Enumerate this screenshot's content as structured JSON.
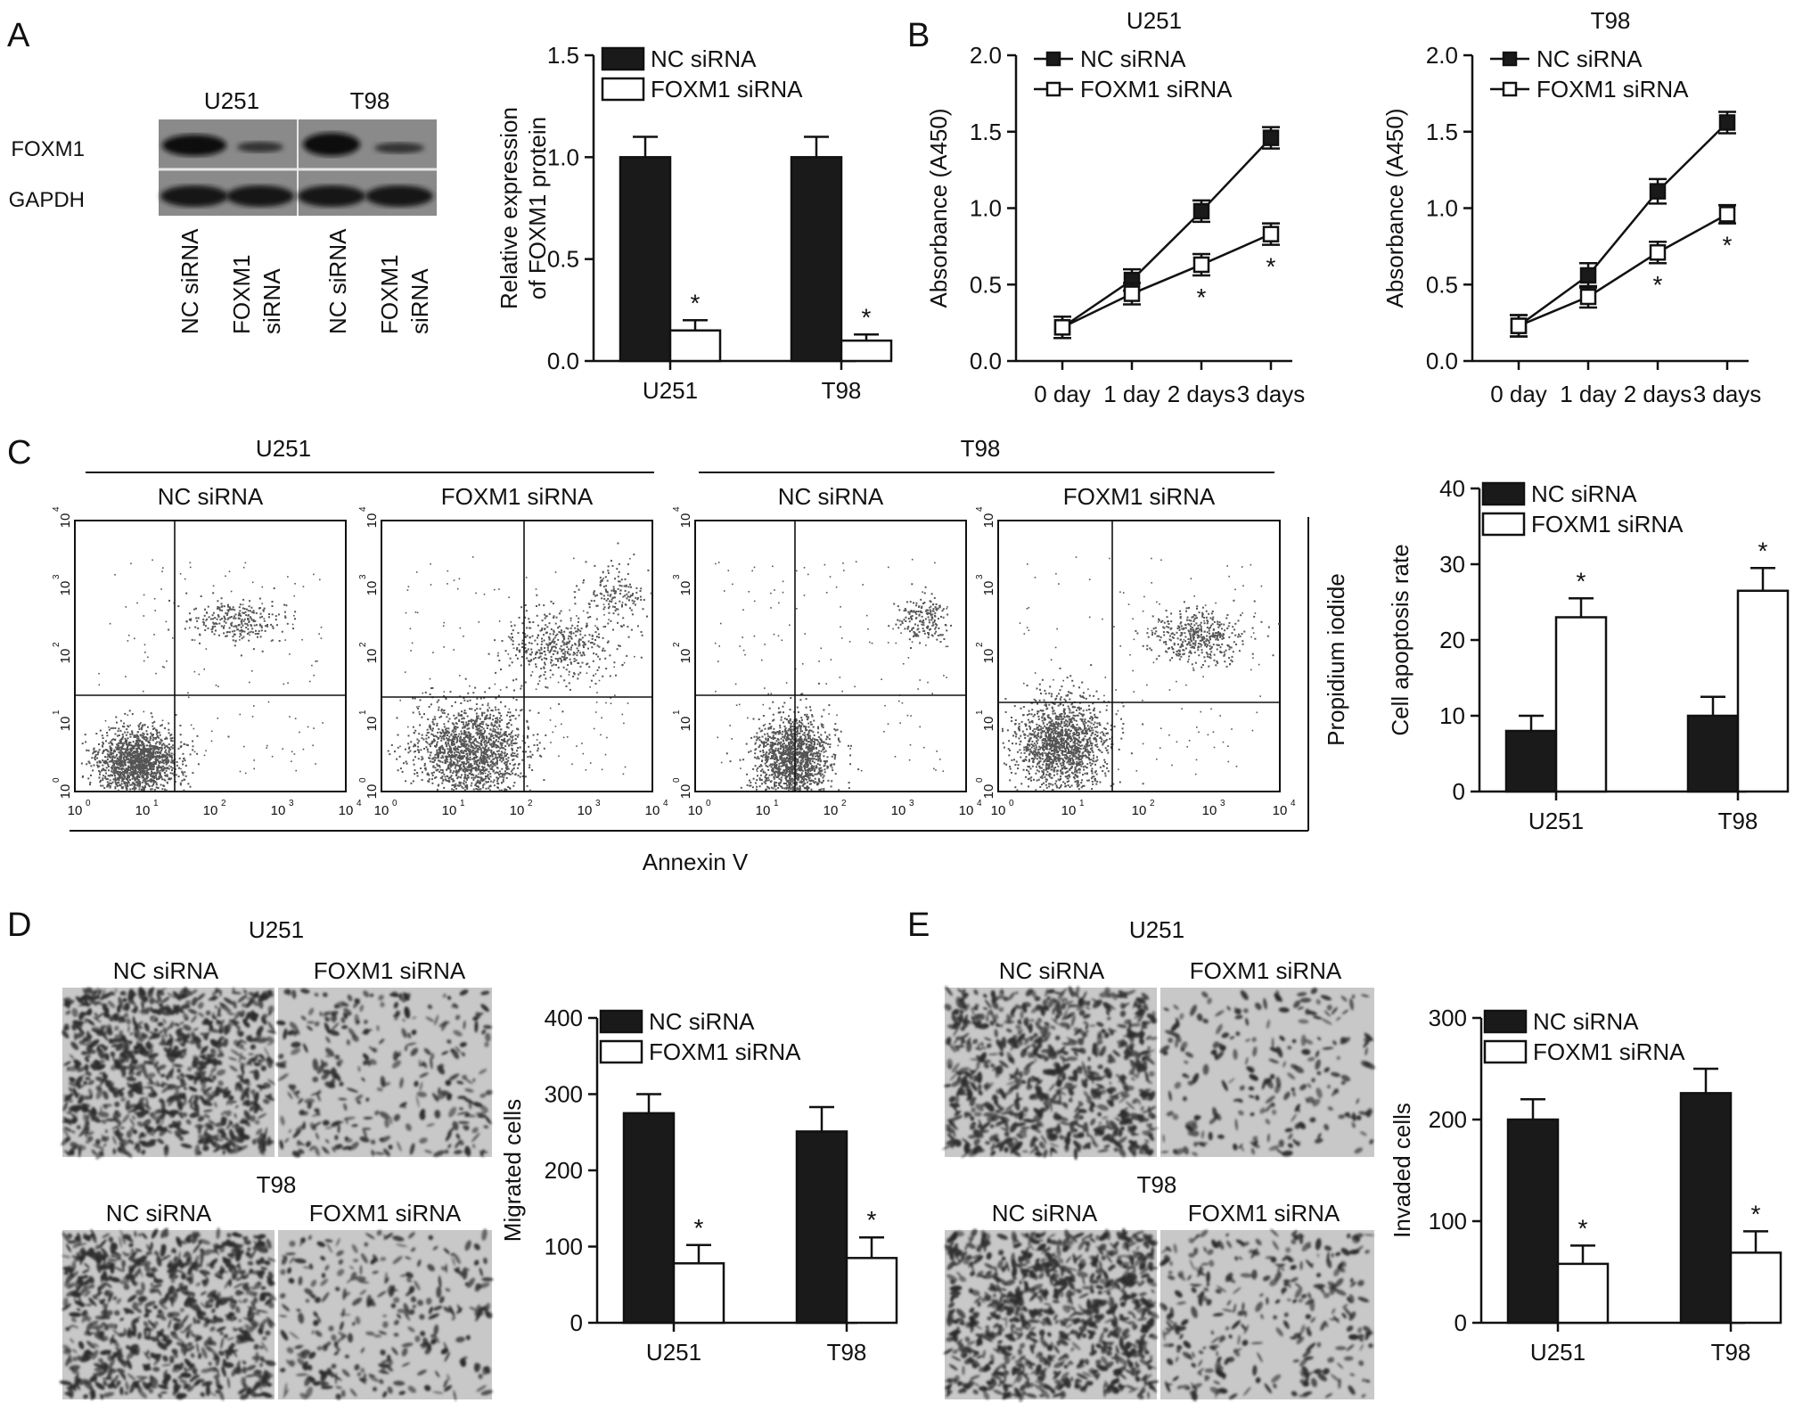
{
  "panels": {
    "A": {
      "letter": "A",
      "blot": {
        "cell_lines": [
          "U251",
          "T98"
        ],
        "rows": [
          "FOXM1",
          "GAPDH"
        ],
        "lanes": [
          "NC siRNA",
          "FOXM1 siRNA",
          "NC siRNA",
          "FOXM1 siRNA"
        ]
      }
    },
    "B": {
      "letter": "B"
    },
    "C": {
      "letter": "C",
      "cell_lines": [
        "U251",
        "T98"
      ],
      "flow_titles": [
        "NC siRNA",
        "FOXM1 siRNA",
        "NC siRNA",
        "FOXM1 siRNA"
      ],
      "xlabel": "Annexin V",
      "ylabel": "Propidium iodide",
      "axis_ticks": [
        "10",
        "10",
        "10",
        "10",
        "10"
      ],
      "axis_exponents": [
        "0",
        "1",
        "2",
        "3",
        "4"
      ]
    },
    "D": {
      "letter": "D",
      "rows": [
        "U251",
        "T98"
      ],
      "conditions": [
        "NC siRNA",
        "FOXM1 siRNA"
      ]
    },
    "E": {
      "letter": "E",
      "rows": [
        "U251",
        "T98"
      ],
      "conditions": [
        "NC siRNA",
        "FOXM1 siRNA"
      ]
    }
  },
  "colors": {
    "nc": "#1a1a1a",
    "foxm1": "#ffffff",
    "axis": "#111111",
    "cell_gray": "#555555",
    "micro_bg": "#c8c8c8",
    "micro_cell": "#2a2a2a"
  },
  "chart_data": [
    {
      "id": "A-bar",
      "type": "bar",
      "categories": [
        "U251",
        "T98"
      ],
      "series": [
        {
          "name": "NC siRNA",
          "values": [
            1.0,
            1.0
          ],
          "errors": [
            0.1,
            0.1
          ]
        },
        {
          "name": "FOXM1 siRNA",
          "values": [
            0.15,
            0.1
          ],
          "errors": [
            0.05,
            0.03
          ]
        }
      ],
      "significance": [
        "*",
        "*"
      ],
      "ylabel": "Relative expression of FOXM1 protein",
      "ylabel_lines": [
        "Relative expression",
        "of FOXM1 protein"
      ],
      "ylim": [
        0,
        1.5
      ],
      "yticks": [
        "0.0",
        "0.5",
        "1.0",
        "1.5"
      ],
      "legend": "top-right"
    },
    {
      "id": "B-U251",
      "type": "line",
      "title": "U251",
      "x": [
        "0 day",
        "1 day",
        "2 days",
        "3 days"
      ],
      "series": [
        {
          "name": "NC siRNA",
          "values": [
            0.22,
            0.53,
            0.98,
            1.46
          ],
          "errors": [
            0.07,
            0.07,
            0.07,
            0.07
          ]
        },
        {
          "name": "FOXM1 siRNA",
          "values": [
            0.22,
            0.44,
            0.63,
            0.83
          ],
          "errors": [
            0.07,
            0.07,
            0.07,
            0.07
          ]
        }
      ],
      "significance": [
        "",
        "",
        "*",
        "*"
      ],
      "ylabel": "Absorbance (A450)",
      "ylim": [
        0,
        2.0
      ],
      "yticks": [
        "0.0",
        "0.5",
        "1.0",
        "1.5",
        "2.0"
      ],
      "legend": "top-left"
    },
    {
      "id": "B-T98",
      "type": "line",
      "title": "T98",
      "x": [
        "0 day",
        "1 day",
        "2 days",
        "3 days"
      ],
      "series": [
        {
          "name": "NC siRNA",
          "values": [
            0.23,
            0.56,
            1.11,
            1.56
          ],
          "errors": [
            0.07,
            0.08,
            0.08,
            0.07
          ]
        },
        {
          "name": "FOXM1 siRNA",
          "values": [
            0.23,
            0.42,
            0.71,
            0.96
          ],
          "errors": [
            0.07,
            0.07,
            0.07,
            0.06
          ]
        }
      ],
      "significance": [
        "",
        "",
        "*",
        "*"
      ],
      "ylabel": "Absorbance (A450)",
      "ylim": [
        0,
        2.0
      ],
      "yticks": [
        "0.0",
        "0.5",
        "1.0",
        "1.5",
        "2.0"
      ],
      "legend": "top-left"
    },
    {
      "id": "C-bar",
      "type": "bar",
      "categories": [
        "U251",
        "T98"
      ],
      "series": [
        {
          "name": "NC siRNA",
          "values": [
            8,
            10
          ],
          "errors": [
            2,
            2.5
          ]
        },
        {
          "name": "FOXM1 siRNA",
          "values": [
            23,
            26.5
          ],
          "errors": [
            2.5,
            3
          ]
        }
      ],
      "significance": [
        "*",
        "*"
      ],
      "ylabel": "Cell apoptosis rate",
      "ylim": [
        0,
        40
      ],
      "yticks": [
        "0",
        "10",
        "20",
        "30",
        "40"
      ],
      "legend": "top"
    },
    {
      "id": "D-bar",
      "type": "bar",
      "categories": [
        "U251",
        "T98"
      ],
      "series": [
        {
          "name": "NC siRNA",
          "values": [
            275,
            251
          ],
          "errors": [
            25,
            32
          ]
        },
        {
          "name": "FOXM1 siRNA",
          "values": [
            78,
            85
          ],
          "errors": [
            24,
            27
          ]
        }
      ],
      "significance": [
        "*",
        "*"
      ],
      "ylabel": "Migrated cells",
      "ylim": [
        0,
        400
      ],
      "yticks": [
        "0",
        "100",
        "200",
        "300",
        "400"
      ],
      "legend": "top"
    },
    {
      "id": "E-bar",
      "type": "bar",
      "categories": [
        "U251",
        "T98"
      ],
      "series": [
        {
          "name": "NC siRNA",
          "values": [
            200,
            226
          ],
          "errors": [
            20,
            24
          ]
        },
        {
          "name": "FOXM1 siRNA",
          "values": [
            58,
            69
          ],
          "errors": [
            18,
            21
          ]
        }
      ],
      "significance": [
        "*",
        "*"
      ],
      "ylabel": "Invaded cells",
      "ylim": [
        0,
        300
      ],
      "yticks": [
        "0",
        "100",
        "200",
        "300"
      ],
      "legend": "top"
    }
  ]
}
